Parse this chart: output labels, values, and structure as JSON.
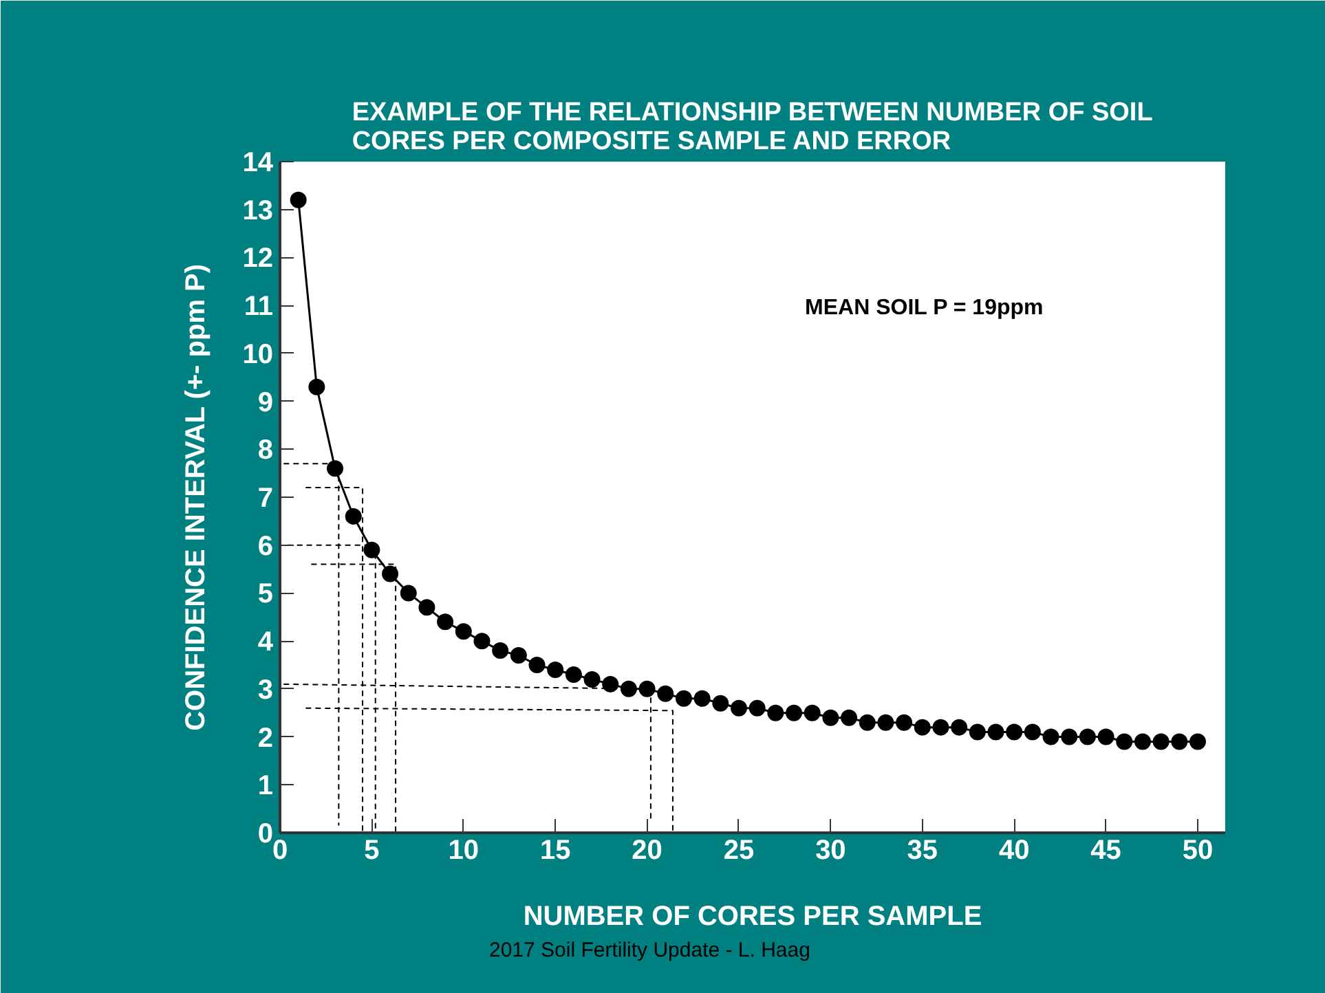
{
  "chart_data": {
    "type": "line",
    "title": "EXAMPLE OF THE RELATIONSHIP BETWEEN NUMBER OF SOIL\nCORES PER COMPOSITE SAMPLE AND ERROR",
    "xlabel": "NUMBER OF CORES PER SAMPLE",
    "ylabel": "CONFIDENCE INTERVAL (+- ppm P)",
    "annotations": [
      "MEAN SOIL P = 19ppm",
      "2017 Soil Fertility Update - L. Haag"
    ],
    "x": [
      1,
      2,
      3,
      4,
      5,
      6,
      7,
      8,
      9,
      10,
      11,
      12,
      13,
      14,
      15,
      16,
      17,
      18,
      19,
      20,
      21,
      22,
      23,
      24,
      25,
      26,
      27,
      28,
      29,
      30,
      31,
      32,
      33,
      34,
      35,
      36,
      37,
      38,
      39,
      40,
      41,
      42,
      43,
      44,
      45,
      46,
      47,
      48,
      49,
      50
    ],
    "series": [
      {
        "color": "#000000",
        "marker": "circle",
        "line_style": "solid",
        "values": [
          13.2,
          9.3,
          7.6,
          6.6,
          5.9,
          5.4,
          5.0,
          4.7,
          4.4,
          4.2,
          4.0,
          3.8,
          3.7,
          3.5,
          3.4,
          3.3,
          3.2,
          3.1,
          3.0,
          3.0,
          2.9,
          2.8,
          2.8,
          2.7,
          2.6,
          2.6,
          2.5,
          2.5,
          2.5,
          2.4,
          2.4,
          2.3,
          2.3,
          2.3,
          2.2,
          2.2,
          2.2,
          2.1,
          2.1,
          2.1,
          2.1,
          2.0,
          2.0,
          2.0,
          2.0,
          1.9,
          1.9,
          1.9,
          1.9,
          1.9
        ]
      },
      {
        "color": "#000000",
        "marker": "none",
        "line_style": "dashed",
        "x": [
          0.2,
          3.2,
          3.2
        ],
        "values": [
          7.7,
          7.7,
          0.15
        ]
      },
      {
        "color": "#000000",
        "marker": "none",
        "line_style": "dashed",
        "x": [
          1.4,
          4.5,
          4.5
        ],
        "values": [
          7.2,
          7.2,
          0
        ]
      },
      {
        "color": "#000000",
        "marker": "none",
        "line_style": "dashed",
        "x": [
          0.4,
          5.2,
          5.2
        ],
        "values": [
          6.0,
          6.0,
          0.05
        ]
      },
      {
        "color": "#000000",
        "marker": "none",
        "line_style": "dashed",
        "x": [
          1.7,
          6.3,
          6.3
        ],
        "values": [
          5.6,
          5.6,
          0
        ]
      },
      {
        "color": "#000000",
        "marker": "none",
        "line_style": "dashed",
        "x": [
          0.2,
          20.2,
          20.2
        ],
        "values": [
          3.1,
          3.0,
          0.25
        ]
      },
      {
        "color": "#000000",
        "marker": "none",
        "line_style": "dashed",
        "x": [
          1.4,
          21.4,
          21.4
        ],
        "values": [
          2.6,
          2.55,
          0
        ]
      }
    ],
    "xlim": [
      0,
      51.5
    ],
    "ylim": [
      0,
      14
    ],
    "xticks": [
      0,
      5,
      10,
      15,
      20,
      25,
      30,
      35,
      40,
      45,
      50
    ],
    "yticks": [
      0,
      1,
      2,
      3,
      4,
      5,
      6,
      7,
      8,
      9,
      10,
      11,
      12,
      13,
      14
    ],
    "grid": false
  }
}
